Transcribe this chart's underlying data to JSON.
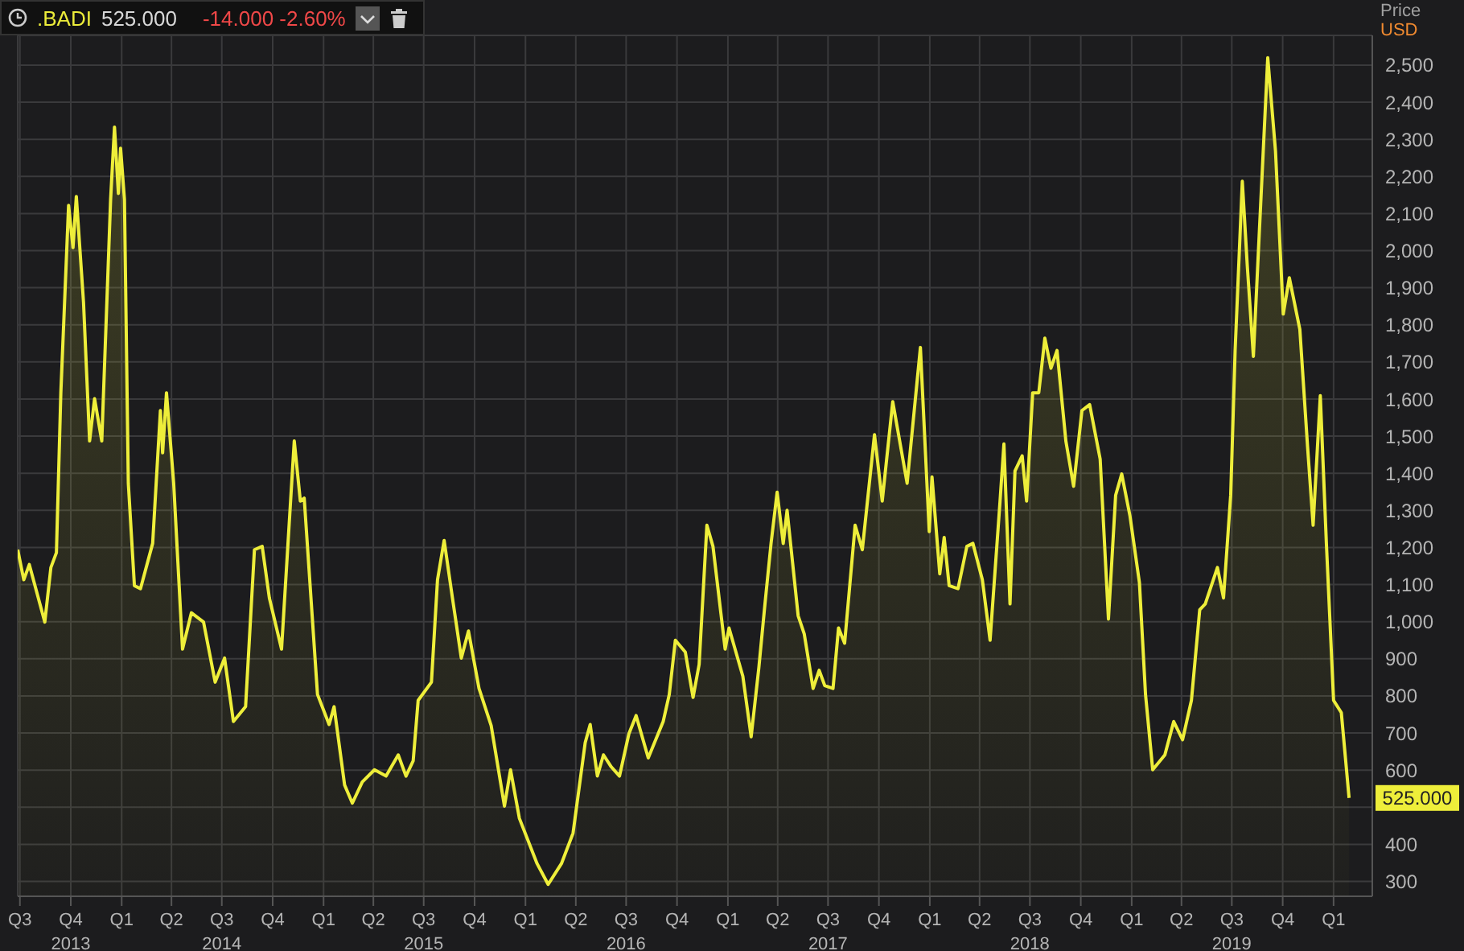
{
  "chart_data": {
    "type": "area",
    "title": ".BADI",
    "ylabel": "Price\nUSD",
    "annotations": [
      "525.000",
      "-14.000 -2.60%",
      {
        "text": "525.000",
        "x": "2020-01-29",
        "y": 525
      }
    ],
    "color": "#eeee3a",
    "x": [
      "2013-06-27",
      "2013-07-08",
      "2013-07-18",
      "2013-08-15",
      "2013-08-26",
      "2013-09-05",
      "2013-09-13",
      "2013-09-27",
      "2013-10-05",
      "2013-10-11",
      "2013-10-24",
      "2013-11-04",
      "2013-11-13",
      "2013-11-26",
      "2013-12-12",
      "2013-12-19",
      "2013-12-26",
      "2013-12-30",
      "2014-01-06",
      "2014-01-13",
      "2014-01-24",
      "2014-02-04",
      "2014-02-26",
      "2014-03-12",
      "2014-03-16",
      "2014-03-23",
      "2014-04-05",
      "2014-04-21",
      "2014-05-07",
      "2014-05-29",
      "2014-06-19",
      "2014-07-06",
      "2014-07-22",
      "2014-08-13",
      "2014-08-29",
      "2014-09-12",
      "2014-09-25",
      "2014-10-17",
      "2014-11-09",
      "2014-11-20",
      "2014-11-27",
      "2014-12-21",
      "2015-01-11",
      "2015-01-20",
      "2015-02-08",
      "2015-02-22",
      "2015-03-12",
      "2015-04-03",
      "2015-04-24",
      "2015-05-16",
      "2015-05-30",
      "2015-06-12",
      "2015-06-21",
      "2015-07-15",
      "2015-07-26",
      "2015-08-07",
      "2015-08-22",
      "2015-09-07",
      "2015-09-20",
      "2015-10-09",
      "2015-10-31",
      "2015-11-24",
      "2015-12-05",
      "2015-12-21",
      "2016-01-22",
      "2016-02-11",
      "2016-03-06",
      "2016-03-27",
      "2016-04-18",
      "2016-04-27",
      "2016-05-10",
      "2016-05-21",
      "2016-06-04",
      "2016-06-19",
      "2016-07-06",
      "2016-07-19",
      "2016-08-10",
      "2016-09-06",
      "2016-09-17",
      "2016-09-28",
      "2016-10-16",
      "2016-10-30",
      "2016-11-10",
      "2016-11-24",
      "2016-12-05",
      "2016-12-27",
      "2017-01-03",
      "2017-01-28",
      "2017-02-12",
      "2017-02-26",
      "2017-03-09",
      "2017-03-20",
      "2017-03-31",
      "2017-04-11",
      "2017-04-18",
      "2017-05-08",
      "2017-05-19",
      "2017-06-04",
      "2017-06-15",
      "2017-06-25",
      "2017-07-10",
      "2017-07-20",
      "2017-07-31",
      "2017-08-19",
      "2017-09-01",
      "2017-09-23",
      "2017-10-07",
      "2017-10-26",
      "2017-11-21",
      "2017-12-15",
      "2017-12-31",
      "2018-01-05",
      "2018-01-19",
      "2018-01-27",
      "2018-02-05",
      "2018-02-21",
      "2018-03-09",
      "2018-03-20",
      "2018-04-06",
      "2018-04-20",
      "2018-05-08",
      "2018-05-15",
      "2018-05-26",
      "2018-06-04",
      "2018-06-17",
      "2018-06-25",
      "2018-07-06",
      "2018-07-17",
      "2018-07-28",
      "2018-08-08",
      "2018-08-19",
      "2018-09-04",
      "2018-09-18",
      "2018-10-03",
      "2018-10-17",
      "2018-11-05",
      "2018-11-20",
      "2018-12-03",
      "2018-12-14",
      "2018-12-29",
      "2019-01-15",
      "2019-01-26",
      "2019-02-08",
      "2019-03-02",
      "2019-03-18",
      "2019-04-03",
      "2019-04-19",
      "2019-05-04",
      "2019-05-14",
      "2019-06-05",
      "2019-06-16",
      "2019-06-29",
      "2019-07-07",
      "2019-07-20",
      "2019-07-29",
      "2019-08-09",
      "2019-08-20",
      "2019-09-04",
      "2019-09-18",
      "2019-10-02",
      "2019-10-13",
      "2019-11-01",
      "2019-11-15",
      "2019-11-25",
      "2019-12-08",
      "2019-12-19",
      "2020-01-01",
      "2020-01-15",
      "2020-01-29"
    ],
    "values": [
      1194,
      1113,
      1154,
      999,
      1146,
      1186,
      1617,
      2122,
      2008,
      2146,
      1861,
      1487,
      1601,
      1487,
      2138,
      2333,
      2154,
      2276,
      2138,
      1373,
      1097,
      1089,
      1211,
      1569,
      1455,
      1617,
      1373,
      926,
      1024,
      999,
      837,
      902,
      731,
      771,
      1194,
      1203,
      1064,
      926,
      1487,
      1325,
      1333,
      804,
      723,
      771,
      560,
      511,
      568,
      601,
      584,
      641,
      584,
      625,
      788,
      837,
      1113,
      1219,
      1064,
      902,
      975,
      820,
      720,
      503,
      601,
      470,
      348,
      292,
      348,
      430,
      674,
      723,
      584,
      641,
      609,
      584,
      698,
      747,
      633,
      731,
      804,
      950,
      918,
      796,
      885,
      1260,
      1203,
      926,
      983,
      853,
      690,
      877,
      1048,
      1211,
      1349,
      1211,
      1300,
      1016,
      967,
      820,
      869,
      828,
      820,
      983,
      942,
      1260,
      1194,
      1504,
      1325,
      1593,
      1373,
      1739,
      1243,
      1390,
      1129,
      1227,
      1097,
      1089,
      1203,
      1211,
      1113,
      950,
      1325,
      1479,
      1048,
      1406,
      1447,
      1325,
      1617,
      1617,
      1764,
      1683,
      1731,
      1487,
      1365,
      1569,
      1585,
      1438,
      1007,
      1341,
      1398,
      1284,
      1105,
      804,
      601,
      641,
      731,
      682,
      788,
      1032,
      1048,
      1146,
      1064,
      1341,
      1731,
      2187,
      1959,
      1715,
      2057,
      2520,
      2268,
      1829,
      1927,
      1788,
      1471,
      1260,
      1609,
      1211,
      788,
      755,
      525
    ],
    "xlim": [
      "2013-06-27",
      "2020-03-11"
    ],
    "xticks": [
      {
        "value": "2013-07-01",
        "label": "Q3"
      },
      {
        "value": "2013-10-01",
        "label": "Q4\n2013"
      },
      {
        "value": "2014-01-01",
        "label": "Q1"
      },
      {
        "value": "2014-04-01",
        "label": "Q2"
      },
      {
        "value": "2014-07-01",
        "label": "Q3\n2014"
      },
      {
        "value": "2014-10-01",
        "label": "Q4"
      },
      {
        "value": "2015-01-01",
        "label": "Q1"
      },
      {
        "value": "2015-04-01",
        "label": "Q2"
      },
      {
        "value": "2015-07-01",
        "label": "Q3\n2015"
      },
      {
        "value": "2015-10-01",
        "label": "Q4"
      },
      {
        "value": "2016-01-01",
        "label": "Q1"
      },
      {
        "value": "2016-04-01",
        "label": "Q2"
      },
      {
        "value": "2016-07-01",
        "label": "Q3\n2016"
      },
      {
        "value": "2016-10-01",
        "label": "Q4"
      },
      {
        "value": "2017-01-01",
        "label": "Q1"
      },
      {
        "value": "2017-04-01",
        "label": "Q2"
      },
      {
        "value": "2017-07-01",
        "label": "Q3\n2017"
      },
      {
        "value": "2017-10-01",
        "label": "Q4"
      },
      {
        "value": "2018-01-01",
        "label": "Q1"
      },
      {
        "value": "2018-04-01",
        "label": "Q2"
      },
      {
        "value": "2018-07-01",
        "label": "Q3\n2018"
      },
      {
        "value": "2018-10-01",
        "label": "Q4"
      },
      {
        "value": "2019-01-01",
        "label": "Q1"
      },
      {
        "value": "2019-04-01",
        "label": "Q2"
      },
      {
        "value": "2019-07-01",
        "label": "Q3\n2019"
      },
      {
        "value": "2019-10-01",
        "label": "Q4"
      },
      {
        "value": "2020-01-01",
        "label": "Q1"
      }
    ],
    "ylim": [
      260,
      2580
    ],
    "yticks": [
      300,
      400,
      {
        "value": 500,
        "label": null
      },
      600,
      700,
      800,
      900,
      {
        "value": 1000,
        "label": "1,000"
      },
      {
        "value": 1100,
        "label": "1,100"
      },
      {
        "value": 1200,
        "label": "1,200"
      },
      {
        "value": 1300,
        "label": "1,300"
      },
      {
        "value": 1400,
        "label": "1,400"
      },
      {
        "value": 1500,
        "label": "1,500"
      },
      {
        "value": 1600,
        "label": "1,600"
      },
      {
        "value": 1700,
        "label": "1,700"
      },
      {
        "value": 1800,
        "label": "1,800"
      },
      {
        "value": 1900,
        "label": "1,900"
      },
      {
        "value": 2000,
        "label": "2,000"
      },
      {
        "value": 2100,
        "label": "2,100"
      },
      {
        "value": 2200,
        "label": "2,200"
      },
      {
        "value": 2300,
        "label": "2,300"
      },
      {
        "value": 2400,
        "label": "2,400"
      },
      {
        "value": 2500,
        "label": "2,500"
      }
    ],
    "grid": true
  }
}
